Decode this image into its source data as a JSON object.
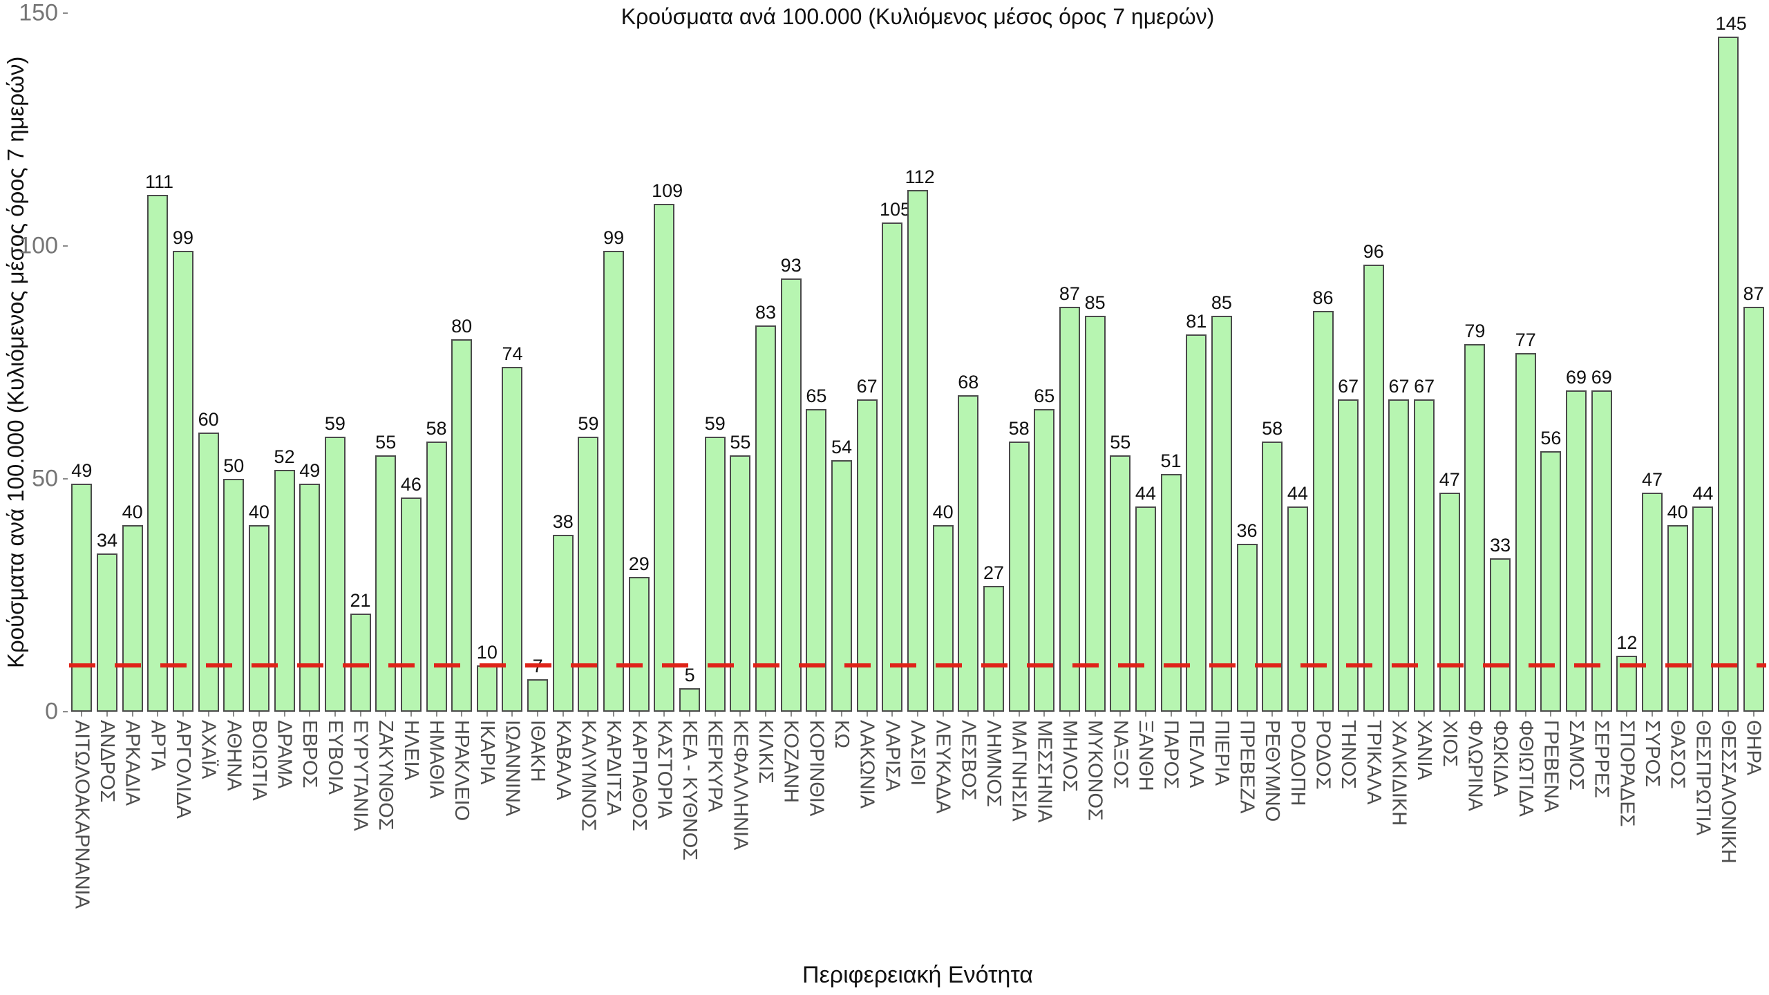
{
  "page": {
    "background": "#ffffff"
  },
  "chart_data": {
    "type": "bar",
    "title": "Κρούσματα ανά 100.000 (Κυλιόμενος μέσος όρος 7 ημερών)",
    "xlabel": "Περιφερειακή Ενότητα",
    "ylabel": "Κρούσματα ανά 100.000 (Κυλιόμενος μέσος όρος 7 ημερών)",
    "ylim": [
      0,
      150
    ],
    "yticks": [
      0,
      50,
      100,
      150
    ],
    "grid": false,
    "legend": null,
    "bar_color": "#b7f5b1",
    "bar_border_color": "#4a4a4a",
    "value_label_color": "#111111",
    "axis_tick_color": "#757575",
    "category_label_color": "#4d4d4d",
    "threshold_line": {
      "value": 10,
      "color": "#df2218",
      "style": "dashed"
    },
    "categories": [
      "ΑΙΤΩΛΟΑΚΑΡΝΑΝΙΑ",
      "ΑΝΔΡΟΣ",
      "ΑΡΚΑΔΙΑ",
      "ΑΡΤΑ",
      "ΑΡΓΟΛΙΔΑ",
      "ΑΧΑΪΑ",
      "ΑΘΗΝΑ",
      "ΒΟΙΩΤΙΑ",
      "ΔΡΑΜΑ",
      "ΕΒΡΟΣ",
      "ΕΥΒΟΙΑ",
      "ΕΥΡΥΤΑΝΙΑ",
      "ΖΑΚΥΝΘΟΣ",
      "ΗΛΕΙΑ",
      "ΗΜΑΘΙΑ",
      "ΗΡΑΚΛΕΙΟ",
      "ΙΚΑΡΙΑ",
      "ΙΩΑΝΝΙΝΑ",
      "ΙΘΑΚΗ",
      "ΚΑΒΑΛΑ",
      "ΚΑΛΥΜΝΟΣ",
      "ΚΑΡΔΙΤΣΑ",
      "ΚΑΡΠΑΘΟΣ",
      "ΚΑΣΤΟΡΙΑ",
      "ΚΕΑ - ΚΥΘΝΟΣ",
      "ΚΕΡΚΥΡΑ",
      "ΚΕΦΑΛΛΗΝΙΑ",
      "ΚΙΛΚΙΣ",
      "ΚΟΖΑΝΗ",
      "ΚΟΡΙΝΘΙΑ",
      "ΚΩ",
      "ΛΑΚΩΝΙΑ",
      "ΛΑΡΙΣΑ",
      "ΛΑΣΙΘΙ",
      "ΛΕΥΚΑΔΑ",
      "ΛΕΣΒΟΣ",
      "ΛΗΜΝΟΣ",
      "ΜΑΓΝΗΣΙΑ",
      "ΜΕΣΣΗΝΙΑ",
      "ΜΗΛΟΣ",
      "ΜΥΚΟΝΟΣ",
      "ΝΑΞΟΣ",
      "ΞΑΝΘΗ",
      "ΠΑΡΟΣ",
      "ΠΕΛΛΑ",
      "ΠΙΕΡΙΑ",
      "ΠΡΕΒΕΖΑ",
      "ΡΕΘΥΜΝΟ",
      "ΡΟΔΟΠΗ",
      "ΡΟΔΟΣ",
      "ΤΗΝΟΣ",
      "ΤΡΙΚΑΛΑ",
      "ΧΑΛΚΙΔΙΚΗ",
      "ΧΑΝΙΑ",
      "ΧΙΟΣ",
      "ΦΛΩΡΙΝΑ",
      "ΦΩΚΙΔΑ",
      "ΦΘΙΩΤΙΔΑ",
      "ΓΡΕΒΕΝΑ",
      "ΣΑΜΟΣ",
      "ΣΕΡΡΕΣ",
      "ΣΠΟΡΑΔΕΣ",
      "ΣΥΡΟΣ",
      "ΘΑΣΟΣ",
      "ΘΕΣΠΡΩΤΙΑ",
      "ΘΕΣΣΑΛΟΝΙΚΗ",
      "ΘΗΡΑ"
    ],
    "values": [
      49,
      34,
      40,
      111,
      99,
      60,
      50,
      40,
      52,
      49,
      59,
      21,
      55,
      46,
      58,
      80,
      10,
      74,
      7,
      38,
      59,
      99,
      29,
      109,
      5,
      59,
      55,
      83,
      93,
      65,
      54,
      67,
      105,
      112,
      40,
      68,
      27,
      58,
      65,
      87,
      85,
      55,
      44,
      51,
      81,
      85,
      36,
      58,
      44,
      86,
      67,
      96,
      67,
      67,
      47,
      79,
      33,
      77,
      56,
      69,
      69,
      12,
      47,
      40,
      44,
      145,
      87
    ]
  }
}
